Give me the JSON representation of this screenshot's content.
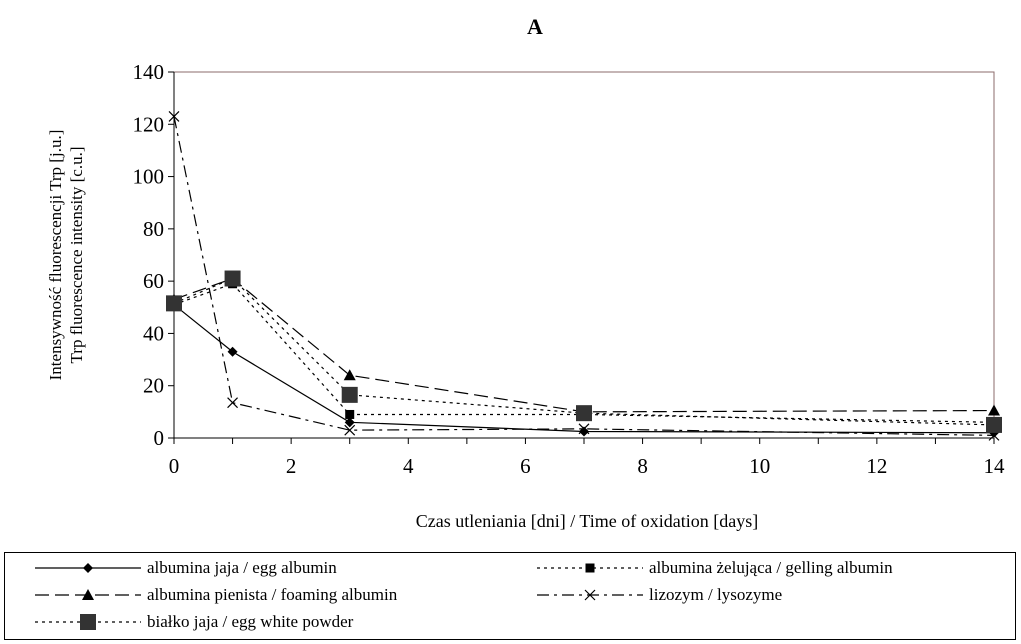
{
  "chart_data": {
    "type": "line",
    "title": "A",
    "xlabel": "Czas utleniania [dni] / Time of oxidation [days]",
    "ylabel_lines": [
      "Intensywność fluorescencji Trp [j.u.]",
      "Trp fluorescence intensity [c.u.]"
    ],
    "xlim": [
      0,
      14
    ],
    "ylim": [
      0,
      140
    ],
    "xticks": [
      0,
      2,
      4,
      6,
      8,
      10,
      12,
      14
    ],
    "yticks": [
      0,
      20,
      40,
      60,
      80,
      100,
      120,
      140
    ],
    "legend_position": "bottom",
    "grid": false,
    "series": [
      {
        "name": "albumina jaja / egg albumin",
        "marker": "diamond",
        "dash": "solid",
        "x": [
          0,
          1,
          3,
          7,
          14
        ],
        "y": [
          51,
          33,
          6,
          2.5,
          2
        ]
      },
      {
        "name": "albumina żelująca / gelling albumin",
        "marker": "square",
        "dash": "dotted",
        "x": [
          0,
          1,
          3,
          7,
          14
        ],
        "y": [
          51,
          59,
          9,
          9,
          6
        ]
      },
      {
        "name": "albumina pienista / foaming albumin",
        "marker": "triangle",
        "dash": "longdash",
        "x": [
          0,
          1,
          3,
          7,
          14
        ],
        "y": [
          53,
          61,
          24,
          10,
          10.5
        ]
      },
      {
        "name": "lizozym / lysozyme",
        "marker": "x",
        "dash": "dashdot",
        "x": [
          0,
          1,
          3,
          7,
          14
        ],
        "y": [
          123,
          13.5,
          3,
          3.5,
          1
        ]
      },
      {
        "name": "białko jaja / egg white powder",
        "marker": "bigsquare",
        "dash": "dotted",
        "x": [
          0,
          1,
          3,
          7,
          14
        ],
        "y": [
          51.5,
          61,
          16.5,
          9.5,
          5
        ]
      }
    ]
  }
}
